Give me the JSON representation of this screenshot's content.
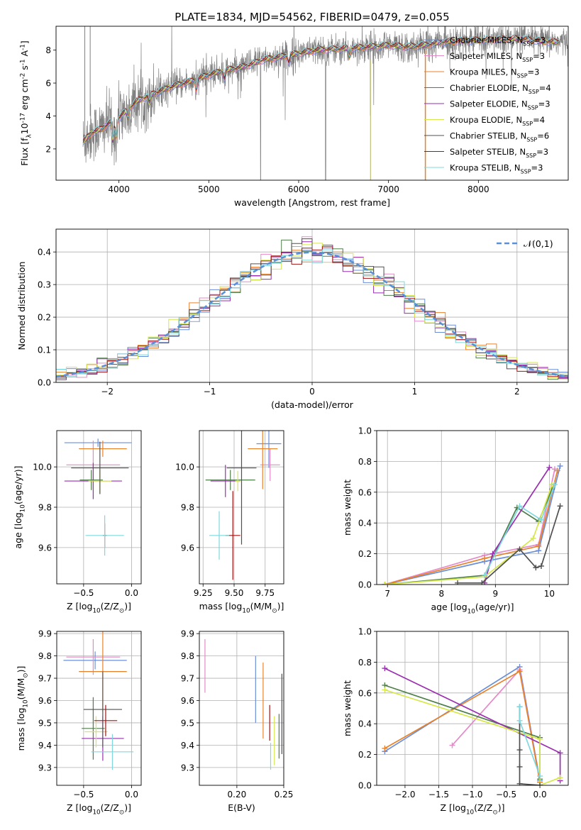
{
  "figure": {
    "title": "PLATE=1834, MJD=54562, FIBERID=0479, z=0.055"
  },
  "models": [
    {
      "name": "Chabrier MILES, N$_{SSP}$=3",
      "color": "#6a8fd8"
    },
    {
      "name": "Salpeter MILES, N$_{SSP}$=3",
      "color": "#e58ac8"
    },
    {
      "name": "Kroupa MILES, N$_{SSP}$=3",
      "color": "#e8822a"
    },
    {
      "name": "Chabrier ELODIE, N$_{SSP}$=4",
      "color": "#4f7f4a"
    },
    {
      "name": "Salpeter ELODIE, N$_{SSP}$=3",
      "color": "#9a2fb0"
    },
    {
      "name": "Kroupa ELODIE, N$_{SSP}$=4",
      "color": "#d6e84a"
    },
    {
      "name": "Chabrier STELIB, N$_{SSP}$=6",
      "color": "#505050"
    },
    {
      "name": "Salpeter STELIB, N$_{SSP}$=3",
      "color": "#a01515"
    },
    {
      "name": "Kroupa STELIB, N$_{SSP}$=3",
      "color": "#7fd8dd"
    }
  ],
  "chart_data": [
    {
      "id": "spectrum",
      "type": "line",
      "xlabel": "wavelength [Angstrom, rest frame]",
      "ylabel": "Flux [f$_\\lambda$10$^{-17}$ erg cm$^{-2}$ s$^{-1}$ A$^{-1}$]",
      "xlim": [
        3300,
        9000
      ],
      "ylim": [
        0.1,
        9.45
      ],
      "xticks": [
        4000,
        5000,
        6000,
        7000,
        8000
      ],
      "yticks": [
        2,
        4,
        6,
        8
      ],
      "legend_position": "top-right",
      "data_color": "#808080",
      "continuum": {
        "x": [
          3600,
          3700,
          3800,
          3900,
          4000,
          4100,
          4200,
          4400,
          4600,
          4800,
          5000,
          5200,
          5400,
          5600,
          5800,
          6000,
          6200,
          6500,
          6800,
          7000,
          7200,
          7400,
          7600,
          8000,
          8400,
          8800
        ],
        "y": [
          2.4,
          3.0,
          3.2,
          3.6,
          3.9,
          4.4,
          4.9,
          5.4,
          5.8,
          6.1,
          6.5,
          6.8,
          7.0,
          7.4,
          7.6,
          7.8,
          8.0,
          8.1,
          8.2,
          8.3,
          8.2,
          8.3,
          8.5,
          8.6,
          8.7,
          8.5
        ]
      }
    },
    {
      "id": "residuals",
      "type": "histogram",
      "xlabel": "(data-model)/error",
      "ylabel": "Normed distribution",
      "xlim": [
        -2.5,
        2.5
      ],
      "ylim": [
        0,
        0.47
      ],
      "xticks": [
        -2,
        -1,
        0,
        1,
        2
      ],
      "yticks": [
        0.0,
        0.1,
        0.2,
        0.3,
        0.4
      ],
      "bin_edges_start": -2.5,
      "bin_width": 0.1,
      "reference": {
        "label": "$\\mathcal{N}(0,1)$",
        "color": "#5b8fd6",
        "mean": 0,
        "sigma": 1
      },
      "legend_position": "top-right"
    },
    {
      "id": "age_vs_Z",
      "type": "errorbar",
      "xlabel": "Z [log$_{10}$(Z/Z$_\\odot$)]",
      "ylabel": "age  [log$_{10}$(age/yr)]",
      "xlim": [
        -0.78,
        0.1
      ],
      "ylim": [
        9.42,
        10.18
      ],
      "xticks": [
        -0.5,
        0.0
      ],
      "yticks": [
        9.6,
        9.8,
        10.0
      ],
      "points": [
        {
          "x": -0.35,
          "y": 10.12,
          "xerr": 0.35,
          "yerr": 0.02,
          "model": 0
        },
        {
          "x": -0.4,
          "y": 10.01,
          "xerr": 0.28,
          "yerr": 0.12,
          "model": 1
        },
        {
          "x": -0.3,
          "y": 10.09,
          "xerr": 0.25,
          "yerr": 0.04,
          "model": 2
        },
        {
          "x": -0.42,
          "y": 9.935,
          "xerr": 0.12,
          "yerr": 0.05,
          "model": 3
        },
        {
          "x": -0.4,
          "y": 9.93,
          "xerr": 0.3,
          "yerr": 0.09,
          "model": 4
        },
        {
          "x": -0.33,
          "y": 9.93,
          "xerr": 0.12,
          "yerr": 0.06,
          "model": 5
        },
        {
          "x": -0.33,
          "y": 9.995,
          "xerr": 0.3,
          "yerr": 0.13,
          "model": 6
        },
        {
          "x": -0.28,
          "y": 9.66,
          "xerr": 0.02,
          "yerr": 0.06,
          "model": 7
        },
        {
          "x": -0.28,
          "y": 9.66,
          "xerr": 0.2,
          "yerr": 0.1,
          "model": 8
        }
      ]
    },
    {
      "id": "age_vs_mass",
      "type": "errorbar",
      "xlabel": "mass [log$_{10}$(M/M$_\\odot$)]",
      "ylabel": "",
      "xlim": [
        9.22,
        9.9
      ],
      "ylim": [
        9.42,
        10.18
      ],
      "xticks": [
        9.25,
        9.5,
        9.75
      ],
      "yticks": [
        9.6,
        9.8,
        10.0
      ],
      "points": [
        {
          "x": 9.78,
          "y": 10.115,
          "xerr": 0.1,
          "yerr": 0.12,
          "model": 0
        },
        {
          "x": 9.79,
          "y": 10.01,
          "xerr": 0.08,
          "yerr": 0.08,
          "model": 1
        },
        {
          "x": 9.73,
          "y": 10.09,
          "xerr": 0.12,
          "yerr": 0.2,
          "model": 2
        },
        {
          "x": 9.47,
          "y": 9.935,
          "xerr": 0.2,
          "yerr": 0.05,
          "model": 3
        },
        {
          "x": 9.43,
          "y": 9.93,
          "xerr": 0.12,
          "yerr": 0.08,
          "model": 4
        },
        {
          "x": 9.53,
          "y": 9.93,
          "xerr": 0.02,
          "yerr": 0.05,
          "model": 5
        },
        {
          "x": 9.56,
          "y": 9.995,
          "xerr": 0.12,
          "yerr": 0.38,
          "model": 6
        },
        {
          "x": 9.49,
          "y": 9.66,
          "xerr": 0.06,
          "yerr": 0.22,
          "model": 7
        },
        {
          "x": 9.38,
          "y": 9.66,
          "xerr": 0.08,
          "yerr": 0.12,
          "model": 8
        }
      ]
    },
    {
      "id": "massweight_vs_age",
      "type": "line",
      "xlabel": "age  [log$_{10}$(age/yr)]",
      "ylabel": "mass weight",
      "xlim": [
        6.8,
        10.35
      ],
      "ylim": [
        0.0,
        1.0
      ],
      "xticks": [
        7,
        8,
        9,
        10
      ],
      "yticks": [
        0.0,
        0.2,
        0.4,
        0.6,
        0.8,
        1.0
      ],
      "series": [
        {
          "model": 0,
          "x": [
            6.95,
            8.8,
            9.8,
            10.2
          ],
          "y": [
            0.0,
            0.15,
            0.22,
            0.77
          ]
        },
        {
          "model": 1,
          "x": [
            6.95,
            8.8,
            9.8,
            10.1
          ],
          "y": [
            0.0,
            0.19,
            0.26,
            0.75
          ]
        },
        {
          "model": 2,
          "x": [
            6.95,
            8.8,
            9.8,
            10.15
          ],
          "y": [
            0.0,
            0.17,
            0.25,
            0.74
          ]
        },
        {
          "model": 3,
          "x": [
            6.95,
            8.8,
            9.4,
            9.8,
            10.05
          ],
          "y": [
            0.0,
            0.06,
            0.5,
            0.41,
            0.62
          ]
        },
        {
          "model": 4,
          "x": [
            8.8,
            8.95,
            10.0
          ],
          "y": [
            0.01,
            0.2,
            0.76
          ]
        },
        {
          "model": 5,
          "x": [
            6.95,
            8.8,
            9.7,
            10.05
          ],
          "y": [
            0.0,
            0.05,
            0.3,
            0.65
          ]
        },
        {
          "model": 6,
          "x": [
            8.3,
            8.75,
            9.45,
            9.75,
            9.85,
            10.2
          ],
          "y": [
            0.01,
            0.01,
            0.23,
            0.11,
            0.12,
            0.51
          ]
        },
        {
          "model": 8,
          "x": [
            8.8,
            9.45,
            9.85,
            10.1
          ],
          "y": [
            0.06,
            0.51,
            0.42,
            0.65
          ]
        }
      ]
    },
    {
      "id": "mass_vs_Z",
      "type": "errorbar",
      "xlabel": "Z [log$_{10}$(Z/Z$_\\odot$)]",
      "ylabel": "mass [log$_{10}$(M/M$_\\odot$)]",
      "xlim": [
        -0.78,
        0.1
      ],
      "ylim": [
        9.22,
        9.91
      ],
      "xticks": [
        -0.5,
        0.0
      ],
      "yticks": [
        9.3,
        9.4,
        9.5,
        9.6,
        9.7,
        9.8,
        9.9
      ],
      "points": [
        {
          "x": -0.38,
          "y": 9.78,
          "xerr": 0.33,
          "yerr": 0.04,
          "model": 0
        },
        {
          "x": -0.4,
          "y": 9.795,
          "xerr": 0.28,
          "yerr": 0.08,
          "model": 1
        },
        {
          "x": -0.3,
          "y": 9.73,
          "xerr": 0.25,
          "yerr": 0.18,
          "model": 2
        },
        {
          "x": -0.4,
          "y": 9.475,
          "xerr": 0.12,
          "yerr": 0.14,
          "model": 3
        },
        {
          "x": -0.3,
          "y": 9.43,
          "xerr": 0.22,
          "yerr": 0.1,
          "model": 4
        },
        {
          "x": -0.37,
          "y": 9.46,
          "xerr": 0.12,
          "yerr": 0.07,
          "model": 5
        },
        {
          "x": -0.3,
          "y": 9.56,
          "xerr": 0.2,
          "yerr": 0.17,
          "model": 6
        },
        {
          "x": -0.27,
          "y": 9.51,
          "xerr": 0.12,
          "yerr": 0.07,
          "model": 7
        },
        {
          "x": -0.2,
          "y": 9.37,
          "xerr": 0.22,
          "yerr": 0.08,
          "model": 8
        }
      ]
    },
    {
      "id": "mass_vs_EBV",
      "type": "errorbar",
      "xlabel": "E(B-V)",
      "ylabel": "",
      "xlim": [
        0.16,
        0.25
      ],
      "ylim": [
        9.22,
        9.91
      ],
      "xticks": [
        0.2,
        0.25
      ],
      "yticks": [
        9.3,
        9.4,
        9.5,
        9.6,
        9.7,
        9.8,
        9.9
      ],
      "points": [
        {
          "x": 0.22,
          "y": 9.65,
          "xerr": 0,
          "yerr": 0.15,
          "model": 0
        },
        {
          "x": 0.166,
          "y": 9.755,
          "xerr": 0,
          "yerr": 0.12,
          "model": 1
        },
        {
          "x": 0.228,
          "y": 9.6,
          "xerr": 0,
          "yerr": 0.17,
          "model": 2
        },
        {
          "x": 0.245,
          "y": 9.44,
          "xerr": 0,
          "yerr": 0.1,
          "model": 3
        },
        {
          "x": 0.24,
          "y": 9.42,
          "xerr": 0,
          "yerr": 0.11,
          "model": 5
        },
        {
          "x": 0.248,
          "y": 9.54,
          "xerr": 0,
          "yerr": 0.18,
          "model": 6
        },
        {
          "x": 0.235,
          "y": 9.5,
          "xerr": 0,
          "yerr": 0.08,
          "model": 7
        },
        {
          "x": 0.236,
          "y": 9.35,
          "xerr": 0,
          "yerr": 0.06,
          "model": 8
        }
      ]
    },
    {
      "id": "massweight_vs_Z",
      "type": "line",
      "xlabel": "Z [log$_{10}$(Z/Z$_\\odot$)]",
      "ylabel": "mass weight",
      "xlim": [
        -2.42,
        0.42
      ],
      "ylim": [
        0.0,
        1.0
      ],
      "xticks": [
        -2.0,
        -1.5,
        -1.0,
        -0.5,
        0.0
      ],
      "yticks": [
        0.0,
        0.2,
        0.4,
        0.6,
        0.8,
        1.0
      ],
      "series": [
        {
          "model": 0,
          "x": [
            -2.3,
            -0.3,
            0.0
          ],
          "y": [
            0.22,
            0.77,
            0.03
          ]
        },
        {
          "model": 1,
          "x": [
            -1.3,
            -0.3,
            0.0
          ],
          "y": [
            0.26,
            0.75,
            0.02
          ]
        },
        {
          "model": 2,
          "x": [
            -2.3,
            -0.3,
            0.0
          ],
          "y": [
            0.24,
            0.74,
            0.02
          ]
        },
        {
          "model": 3,
          "x": [
            -2.3,
            0.0,
            0.0
          ],
          "y": [
            0.65,
            0.31,
            0.04
          ]
        },
        {
          "model": 4,
          "x": [
            -2.3,
            0.3,
            0.3
          ],
          "y": [
            0.76,
            0.21,
            0.03
          ]
        },
        {
          "model": 5,
          "x": [
            -2.3,
            0.0,
            0.0,
            0.3
          ],
          "y": [
            0.62,
            0.3,
            0.0,
            0.05
          ]
        },
        {
          "model": 6,
          "x": [
            -0.3,
            -0.3,
            -0.3,
            -0.3,
            0.0
          ],
          "y": [
            0.51,
            0.23,
            0.12,
            0.01,
            0.0
          ]
        },
        {
          "model": 8,
          "x": [
            -0.3,
            -0.3,
            0.0
          ],
          "y": [
            0.51,
            0.42,
            0.06
          ]
        }
      ]
    }
  ]
}
